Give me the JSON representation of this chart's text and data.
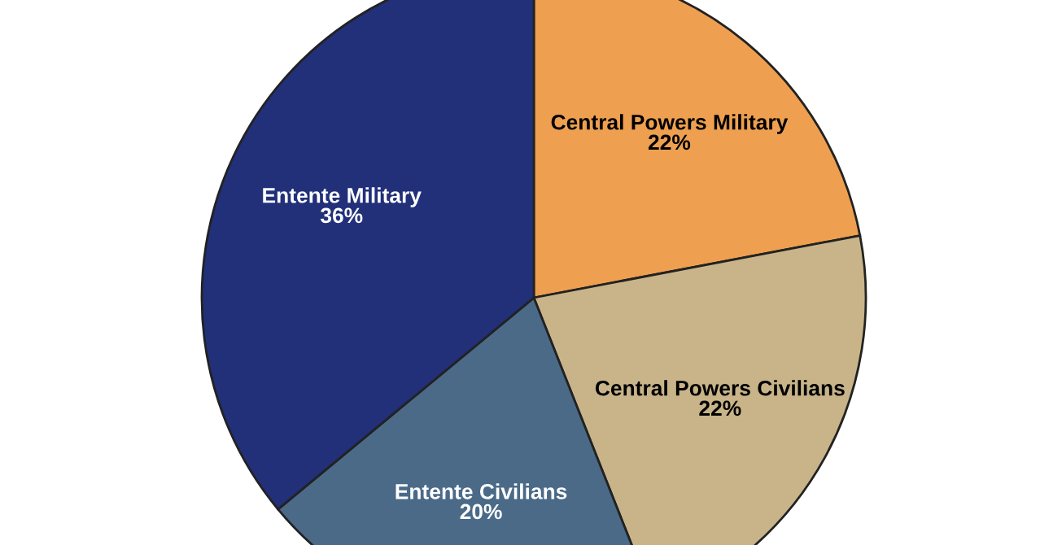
{
  "chart_data": {
    "type": "pie",
    "categories": [
      "Central Powers Military",
      "Central Powers Civilians",
      "Entente Civilians",
      "Entente Military"
    ],
    "values": [
      22,
      22,
      20,
      36
    ],
    "colors": [
      "#eea050",
      "#c8b488",
      "#4a6a88",
      "#22307a"
    ],
    "value_labels": [
      "22%",
      "22%",
      "20%",
      "36%"
    ]
  }
}
